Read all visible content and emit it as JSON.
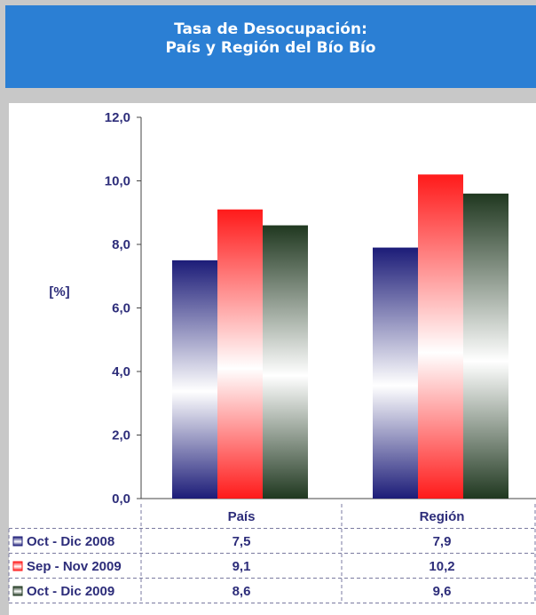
{
  "title_lines": [
    "Tasa de Desocupación:",
    "País y Región del Bío Bío"
  ],
  "chart_data": {
    "type": "bar",
    "title": "Tasa de Desocupación: País y Región del Bío Bío",
    "ylabel": "[%]",
    "xlabel": "",
    "categories": [
      "País",
      "Región"
    ],
    "ylim": [
      0,
      12
    ],
    "yticks": [
      "0,0",
      "2,0",
      "4,0",
      "6,0",
      "8,0",
      "10,0",
      "12,0"
    ],
    "grid": false,
    "legend": "data-table",
    "series": [
      {
        "name": "Oct - Dic 2008",
        "values": [
          7.5,
          7.9
        ],
        "labels": [
          "7,5",
          "7,9"
        ],
        "color": "#1c1c78"
      },
      {
        "name": "Sep - Nov 2009",
        "values": [
          9.1,
          10.2
        ],
        "labels": [
          "9,1",
          "10,2"
        ],
        "color": "#ff1a1a"
      },
      {
        "name": "Oct - Dic 2009",
        "values": [
          8.6,
          9.6
        ],
        "labels": [
          "8,6",
          "9,6"
        ],
        "color": "#203820"
      }
    ]
  }
}
